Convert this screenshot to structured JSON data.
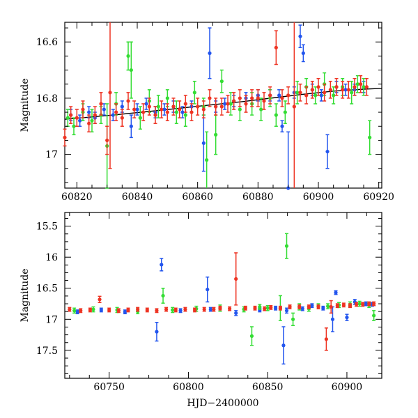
{
  "chart_data": [
    {
      "type": "scatter",
      "title": "",
      "xlabel": "",
      "ylabel": "Magnitude",
      "xlim": [
        60816,
        60921
      ],
      "ylim": [
        17.12,
        16.53
      ],
      "y_inverted": true,
      "grid": false,
      "x_ticks": [
        60820,
        60840,
        60860,
        60880,
        60900,
        60920
      ],
      "x_tick_labels": [
        "60820",
        "60840",
        "60860",
        "60880",
        "60900",
        "60920"
      ],
      "y_ticks": [
        16.6,
        16.8,
        17.0
      ],
      "y_tick_labels": [
        "16.6",
        "16.8",
        "17"
      ],
      "fit_curve": {
        "color": "#000000",
        "x": [
          60816,
          60830,
          60845,
          60860,
          60875,
          60885,
          60895,
          60905,
          60915,
          60921
        ],
        "y": [
          16.875,
          16.862,
          16.846,
          16.829,
          16.812,
          16.799,
          16.786,
          16.775,
          16.768,
          16.765
        ]
      },
      "series": [
        {
          "color": "#2255ee",
          "x": [
            60818,
            60821,
            60824,
            60826,
            60829,
            60832,
            60835,
            60838,
            60840,
            60843,
            60846,
            60849,
            60852,
            60855,
            60858,
            60862,
            60864,
            60866,
            60869,
            60872,
            60876,
            60880,
            60884,
            60887,
            60888,
            60890,
            60892,
            60894,
            60895,
            60898,
            60901,
            60903,
            60906,
            60909,
            60912,
            60915
          ],
          "y": [
            16.86,
            16.88,
            16.85,
            16.87,
            16.84,
            16.86,
            16.83,
            16.9,
            16.84,
            16.82,
            16.85,
            16.84,
            16.83,
            16.85,
            16.83,
            16.96,
            16.64,
            16.83,
            16.82,
            16.81,
            16.8,
            16.79,
            16.79,
            16.79,
            16.9,
            17.12,
            16.78,
            16.58,
            16.64,
            16.77,
            16.79,
            16.99,
            16.76,
            16.77,
            16.77,
            16.76
          ],
          "err": [
            0.02,
            0.02,
            0.02,
            0.02,
            0.02,
            0.02,
            0.02,
            0.04,
            0.02,
            0.02,
            0.02,
            0.02,
            0.02,
            0.02,
            0.02,
            0.1,
            0.09,
            0.02,
            0.02,
            0.02,
            0.02,
            0.02,
            0.02,
            0.02,
            0.02,
            0.2,
            0.02,
            0.04,
            0.03,
            0.02,
            0.02,
            0.06,
            0.02,
            0.02,
            0.02,
            0.02
          ]
        },
        {
          "color": "#33dd33",
          "x": [
            60817,
            60819,
            60822,
            60825,
            60828,
            60830,
            60833,
            60837,
            60838,
            60841,
            60844,
            60847,
            60850,
            60853,
            60856,
            60859,
            60862,
            60863,
            60866,
            60868,
            60871,
            60874,
            60878,
            60881,
            60884,
            60886,
            60889,
            60893,
            60896,
            60899,
            60902,
            60905,
            60908,
            60911,
            60913,
            60915,
            60917
          ],
          "y": [
            16.87,
            16.9,
            16.85,
            16.88,
            16.86,
            16.97,
            16.82,
            16.65,
            16.7,
            16.87,
            16.81,
            16.83,
            16.8,
            16.85,
            16.86,
            16.78,
            16.83,
            17.02,
            16.93,
            16.74,
            16.82,
            16.84,
            16.82,
            16.84,
            16.8,
            16.86,
            16.85,
            16.78,
            16.76,
            16.79,
            16.75,
            16.79,
            16.76,
            16.78,
            16.75,
            16.76,
            16.94
          ],
          "err": [
            0.03,
            0.03,
            0.03,
            0.04,
            0.03,
            0.15,
            0.04,
            0.05,
            0.1,
            0.04,
            0.04,
            0.04,
            0.03,
            0.04,
            0.04,
            0.04,
            0.03,
            0.1,
            0.07,
            0.04,
            0.04,
            0.04,
            0.04,
            0.04,
            0.03,
            0.04,
            0.04,
            0.04,
            0.03,
            0.03,
            0.04,
            0.03,
            0.03,
            0.04,
            0.03,
            0.03,
            0.06
          ]
        },
        {
          "color": "#ee3322",
          "x": [
            60816,
            60818,
            60820,
            60822,
            60824,
            60826,
            60828,
            60830,
            60831,
            60833,
            60835,
            60837,
            60839,
            60842,
            60844,
            60846,
            60848,
            60850,
            60852,
            60854,
            60856,
            60858,
            60860,
            60862,
            60864,
            60866,
            60868,
            60870,
            60872,
            60874,
            60876,
            60878,
            60880,
            60882,
            60884,
            60886,
            60888,
            60890,
            60892,
            60894,
            60896,
            60898,
            60900,
            60902,
            60904,
            60906,
            60908,
            60910,
            60912,
            60914,
            60916
          ],
          "y": [
            16.94,
            16.86,
            16.87,
            16.84,
            16.89,
            16.86,
            16.82,
            16.95,
            16.78,
            16.85,
            16.87,
            16.81,
            16.84,
            16.85,
            16.83,
            16.86,
            16.84,
            16.85,
            16.83,
            16.84,
            16.82,
            16.85,
            16.83,
            16.84,
            16.8,
            16.83,
            16.83,
            16.82,
            16.81,
            16.8,
            16.82,
            16.8,
            16.8,
            16.81,
            16.79,
            16.62,
            16.8,
            16.79,
            16.83,
            16.78,
            16.79,
            16.77,
            16.76,
            16.78,
            16.77,
            16.76,
            16.77,
            16.77,
            16.76,
            16.75,
            16.76
          ],
          "err": [
            0.03,
            0.03,
            0.03,
            0.03,
            0.03,
            0.03,
            0.04,
            0.05,
            0.27,
            0.03,
            0.03,
            0.03,
            0.03,
            0.03,
            0.03,
            0.03,
            0.03,
            0.03,
            0.03,
            0.03,
            0.03,
            0.03,
            0.03,
            0.03,
            0.03,
            0.03,
            0.03,
            0.03,
            0.03,
            0.03,
            0.03,
            0.03,
            0.03,
            0.03,
            0.03,
            0.06,
            0.03,
            0.03,
            0.3,
            0.03,
            0.03,
            0.03,
            0.03,
            0.03,
            0.03,
            0.03,
            0.03,
            0.03,
            0.03,
            0.03,
            0.03
          ]
        }
      ]
    },
    {
      "type": "scatter",
      "title": "",
      "xlabel": "HJD−2400000",
      "ylabel": "Magnitude",
      "xlim": [
        60722,
        60922
      ],
      "ylim": [
        17.95,
        15.28
      ],
      "y_inverted": true,
      "grid": false,
      "x_ticks": [
        60750,
        60800,
        60850,
        60900
      ],
      "x_tick_labels": [
        "60750",
        "60800",
        "60850",
        "60900"
      ],
      "y_ticks": [
        15.5,
        16.0,
        16.5,
        17.0,
        17.5
      ],
      "y_tick_labels": [
        "15.5",
        "16",
        "16.5",
        "17",
        "17.5"
      ],
      "series": [
        {
          "color": "#2255ee",
          "x": [
            60730,
            60745,
            60760,
            60780,
            60783,
            60795,
            60812,
            60814,
            60830,
            60845,
            60855,
            60860,
            60862,
            60872,
            60878,
            60885,
            60891,
            60893,
            60900,
            60905,
            60912,
            60916
          ],
          "y": [
            16.88,
            16.85,
            16.88,
            17.2,
            16.12,
            16.86,
            16.52,
            16.84,
            16.9,
            16.85,
            16.82,
            17.42,
            16.86,
            16.83,
            16.78,
            16.82,
            17.0,
            16.57,
            16.97,
            16.72,
            16.75,
            16.76
          ],
          "err": [
            0.03,
            0.03,
            0.03,
            0.15,
            0.1,
            0.03,
            0.2,
            0.03,
            0.04,
            0.03,
            0.03,
            0.3,
            0.04,
            0.03,
            0.03,
            0.03,
            0.2,
            0.03,
            0.05,
            0.04,
            0.03,
            0.03
          ]
        },
        {
          "color": "#33dd33",
          "x": [
            60728,
            60740,
            60755,
            60768,
            60784,
            60790,
            60805,
            60820,
            60835,
            60840,
            60845,
            60850,
            60858,
            60862,
            60866,
            60870,
            60876,
            60882,
            60888,
            60895,
            60902,
            60908,
            60914,
            60917
          ],
          "y": [
            16.86,
            16.84,
            16.85,
            16.87,
            16.62,
            16.85,
            16.83,
            16.82,
            16.84,
            17.27,
            16.8,
            16.82,
            16.82,
            15.82,
            17.0,
            16.8,
            16.83,
            16.79,
            16.79,
            16.77,
            16.76,
            16.75,
            16.77,
            16.94
          ],
          "err": [
            0.04,
            0.04,
            0.04,
            0.04,
            0.12,
            0.04,
            0.04,
            0.05,
            0.04,
            0.15,
            0.04,
            0.04,
            0.2,
            0.2,
            0.1,
            0.05,
            0.04,
            0.04,
            0.04,
            0.04,
            0.04,
            0.04,
            0.04,
            0.08
          ]
        },
        {
          "color": "#ee3322",
          "x": [
            60725,
            60732,
            60738,
            60744,
            60750,
            60756,
            60762,
            60768,
            60774,
            60780,
            60786,
            60792,
            60798,
            60804,
            60810,
            60816,
            60820,
            60826,
            60830,
            60836,
            60842,
            60848,
            60852,
            60858,
            60864,
            60870,
            60876,
            60882,
            60887,
            60890,
            60894,
            60898,
            60902,
            60906,
            60910,
            60914,
            60917
          ],
          "y": [
            16.84,
            16.86,
            16.85,
            16.68,
            16.85,
            16.86,
            16.85,
            16.84,
            16.85,
            16.86,
            16.84,
            16.85,
            16.84,
            16.85,
            16.84,
            16.84,
            16.82,
            16.83,
            16.35,
            16.82,
            16.82,
            16.83,
            16.81,
            16.82,
            16.8,
            16.8,
            16.8,
            16.8,
            17.32,
            16.8,
            16.78,
            16.77,
            16.78,
            16.76,
            16.76,
            16.75,
            16.75
          ],
          "err": [
            0.03,
            0.03,
            0.03,
            0.05,
            0.03,
            0.03,
            0.03,
            0.03,
            0.03,
            0.03,
            0.03,
            0.03,
            0.03,
            0.03,
            0.03,
            0.03,
            0.03,
            0.03,
            0.42,
            0.03,
            0.03,
            0.03,
            0.03,
            0.03,
            0.03,
            0.03,
            0.03,
            0.03,
            0.18,
            0.1,
            0.03,
            0.03,
            0.03,
            0.03,
            0.03,
            0.03,
            0.03
          ]
        }
      ]
    }
  ]
}
